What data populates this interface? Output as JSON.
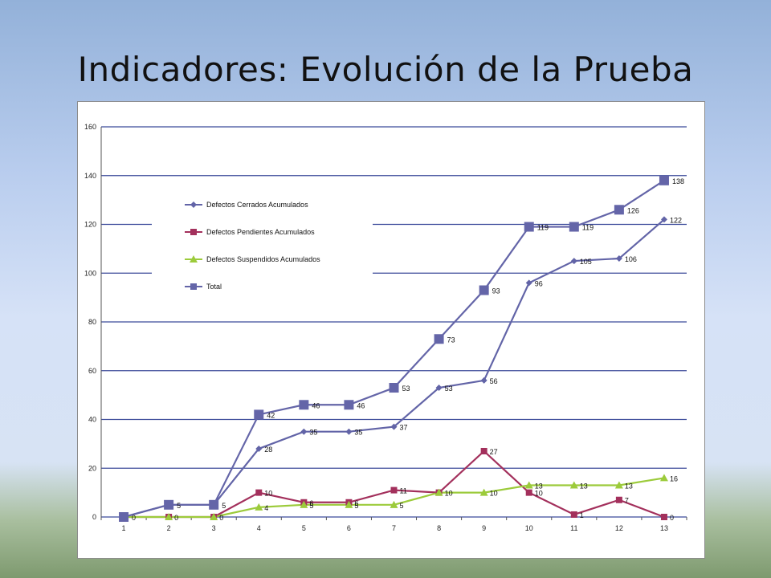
{
  "slide": {
    "title": "Indicadores: Evolución de la Prueba"
  },
  "chart_data": {
    "type": "line",
    "title": "",
    "xlabel": "",
    "ylabel": "",
    "categories": [
      "1",
      "2",
      "3",
      "4",
      "5",
      "6",
      "7",
      "8",
      "9",
      "10",
      "11",
      "12",
      "13"
    ],
    "ylim": [
      0,
      160
    ],
    "yticks": [
      0,
      20,
      40,
      60,
      80,
      100,
      120,
      140,
      160
    ],
    "grid": "horizontal",
    "legend_position": "upper-left inside",
    "series": [
      {
        "name": "Defectos Cerrados Acumulados",
        "color": "#6264a7",
        "marker": "diamond",
        "values": [
          0,
          5,
          5,
          28,
          35,
          35,
          37,
          53,
          56,
          96,
          105,
          106,
          122
        ],
        "labels": [
          "",
          "",
          "",
          "28",
          "35",
          "35",
          "37",
          "53",
          "56",
          "96",
          "105",
          "106",
          "122"
        ]
      },
      {
        "name": "Defectos Pendientes Acumulados",
        "color": "#a3305c",
        "marker": "square",
        "values": [
          0,
          0,
          0,
          10,
          6,
          6,
          11,
          10,
          27,
          10,
          1,
          7,
          0
        ],
        "labels": [
          "",
          "",
          "",
          "10",
          "6",
          "6",
          "11",
          "",
          "27",
          "10",
          "1",
          "7",
          "0"
        ]
      },
      {
        "name": "Defectos Suspendidos Acumulados",
        "color": "#9ccb3b",
        "marker": "triangle",
        "values": [
          0,
          0,
          0,
          4,
          5,
          5,
          5,
          10,
          10,
          13,
          13,
          13,
          16
        ],
        "labels": [
          "",
          "0",
          "0",
          "4",
          "5",
          "5",
          "5",
          "10",
          "10",
          "13",
          "13",
          "13",
          "16"
        ]
      },
      {
        "name": "Total",
        "color": "#6465a8",
        "marker": "bigsquare",
        "values": [
          0,
          5,
          5,
          42,
          46,
          46,
          53,
          73,
          93,
          119,
          119,
          126,
          138
        ],
        "labels": [
          "0",
          "5",
          "5",
          "42",
          "46",
          "46",
          "53",
          "73",
          "93",
          "119",
          "119",
          "126",
          "138"
        ]
      }
    ]
  }
}
